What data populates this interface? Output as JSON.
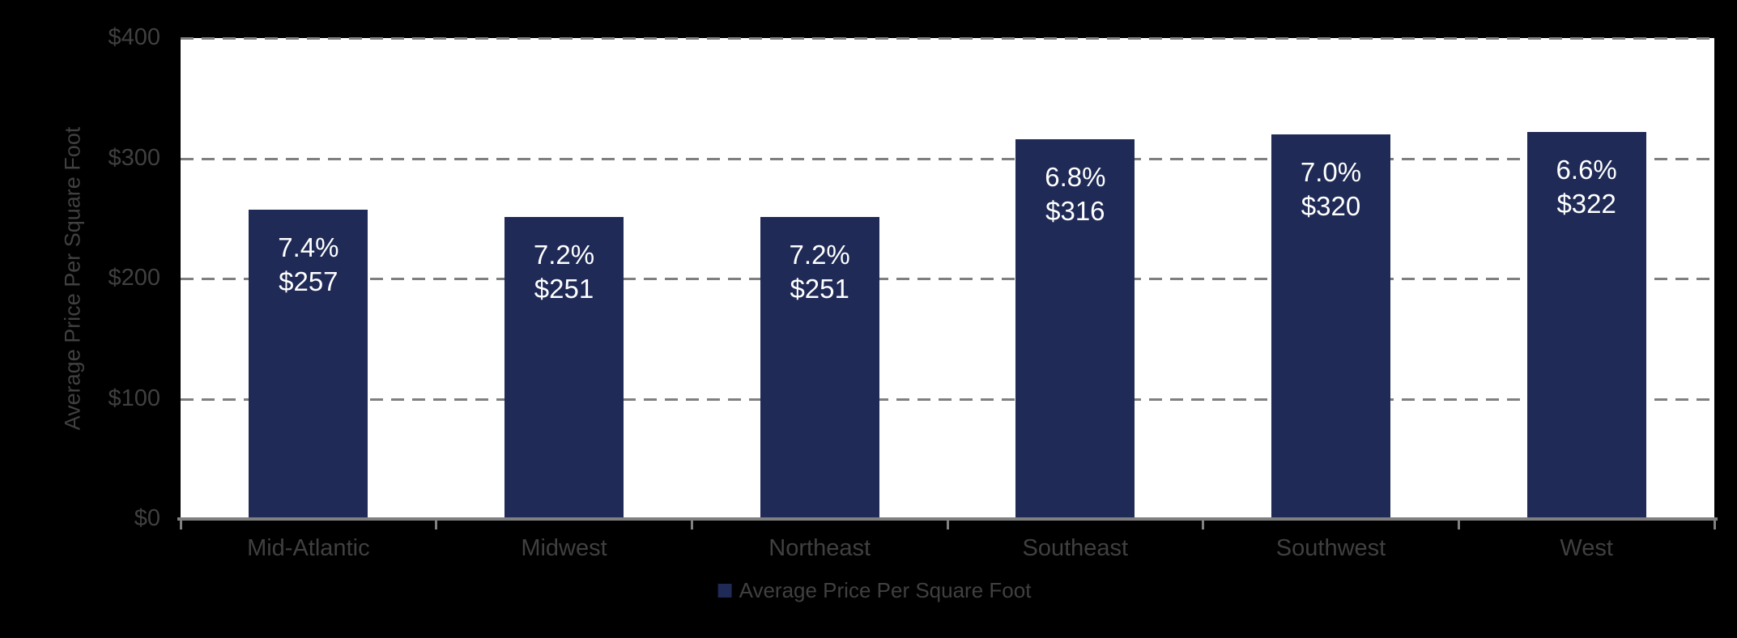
{
  "chart_data": {
    "type": "bar",
    "title": "",
    "categories": [
      "Mid-Atlantic",
      "Midwest",
      "Northeast",
      "Southeast",
      "Southwest",
      "West"
    ],
    "series": [
      {
        "name": "Average Price Per Square Foot",
        "values": [
          257,
          251,
          251,
          316,
          320,
          322
        ],
        "percent_labels": [
          "7.4%",
          "7.2%",
          "7.2%",
          "6.8%",
          "7.0%",
          "6.6%"
        ],
        "price_labels": [
          "$257",
          "$251",
          "$251",
          "$316",
          "$320",
          "$322"
        ]
      }
    ],
    "xlabel": "",
    "ylabel": "Average Price Per Square Foot",
    "ylim": [
      0,
      400
    ],
    "yticks": [
      {
        "value": 0,
        "label": "$0"
      },
      {
        "value": 100,
        "label": "$100"
      },
      {
        "value": 200,
        "label": "$200"
      },
      {
        "value": 300,
        "label": "$300"
      },
      {
        "value": 400,
        "label": "$400"
      }
    ],
    "grid": "dashed-horizontal",
    "legend": {
      "position": "bottom",
      "label": "Average Price Per Square Foot"
    },
    "colors": {
      "bar": "#1F2A56",
      "background": "#000000",
      "plot_background": "#FFFFFF",
      "gridline": "#7F7F7F",
      "axis_line": "#808080",
      "axis_text": "#404040",
      "data_label_text": "#FFFFFF"
    }
  }
}
